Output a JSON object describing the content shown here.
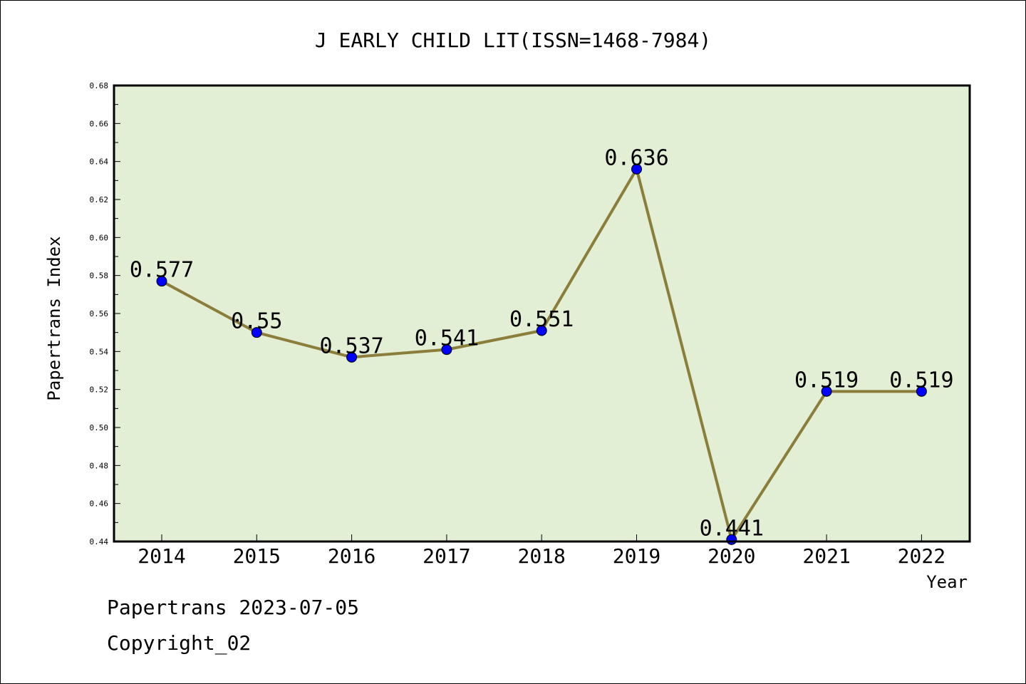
{
  "chart_data": {
    "type": "line",
    "title": "J EARLY CHILD LIT(ISSN=1468-7984)",
    "xlabel": "Year",
    "ylabel": "Papertrans Index",
    "categories": [
      "2014",
      "2015",
      "2016",
      "2017",
      "2018",
      "2019",
      "2020",
      "2021",
      "2022"
    ],
    "series": [
      {
        "values": [
          0.577,
          0.55,
          0.537,
          0.541,
          0.551,
          0.636,
          0.441,
          0.519,
          0.519
        ],
        "labels": [
          "0.577",
          "0.55",
          "0.537",
          "0.541",
          "0.551",
          "0.636",
          "0.441",
          "0.519",
          "0.519"
        ]
      }
    ],
    "ylim": [
      0.44,
      0.68
    ],
    "yticks": [
      "0.44",
      "0.46",
      "0.48",
      "0.50",
      "0.52",
      "0.54",
      "0.56",
      "0.58",
      "0.60",
      "0.62",
      "0.64",
      "0.66",
      "0.68"
    ],
    "grid": false,
    "colors": {
      "plot_background": "#e2efd5",
      "line": "#8b7d3a",
      "marker": "#0000ff"
    }
  },
  "footer": {
    "date_line": "Papertrans 2023-07-05",
    "copyright_line": "Copyright_02"
  }
}
